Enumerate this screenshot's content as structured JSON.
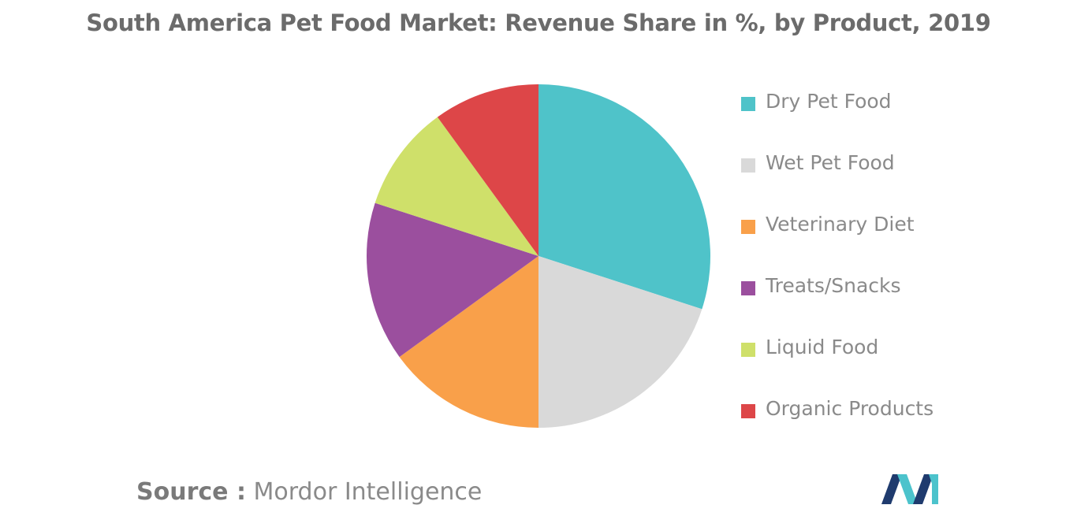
{
  "title": "South America Pet Food Market: Revenue Share in %, by Product, 2019",
  "source": {
    "label": "Source :",
    "text": "Mordor Intelligence"
  },
  "logo": {
    "icon": "mordor-intelligence-logo",
    "colors": [
      "#1f3b6e",
      "#4cc3cc"
    ]
  },
  "chart_data": {
    "type": "pie",
    "title": "South America Pet Food Market: Revenue Share in %, by Product, 2019",
    "legend_position": "right",
    "start_angle_deg": 0,
    "direction": "clockwise",
    "slices": [
      {
        "label": "Dry Pet Food",
        "value": 30,
        "color": "#4fc3c9"
      },
      {
        "label": "Wet Pet Food",
        "value": 20,
        "color": "#d9d9d9"
      },
      {
        "label": "Veterinary Diet",
        "value": 15,
        "color": "#f9a04a"
      },
      {
        "label": "Treats/Snacks",
        "value": 15,
        "color": "#9b4f9e"
      },
      {
        "label": "Liquid Food",
        "value": 10,
        "color": "#cfe06a"
      },
      {
        "label": "Organic Products",
        "value": 10,
        "color": "#dd4648"
      }
    ]
  }
}
